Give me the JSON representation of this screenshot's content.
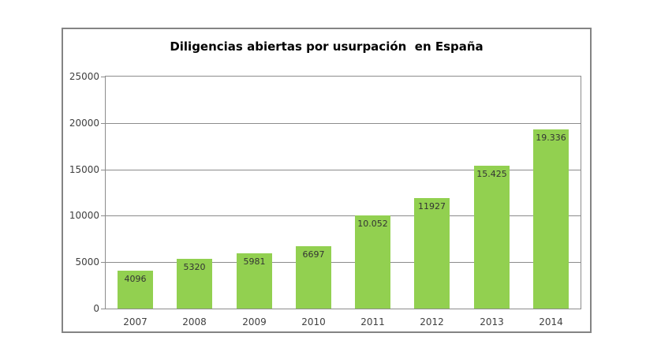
{
  "chart_data": {
    "type": "bar",
    "title": "Diligencias abiertas por usurpación  en España",
    "categories": [
      "2007",
      "2008",
      "2009",
      "2010",
      "2011",
      "2012",
      "2013",
      "2014"
    ],
    "values": [
      4096,
      5320,
      5981,
      6697,
      10052,
      11927,
      15425,
      19336
    ],
    "value_labels": [
      "4096",
      "5320",
      "5981",
      "6697",
      "10.052",
      "11927",
      "15.425",
      "19.336"
    ],
    "xlabel": "",
    "ylabel": "",
    "ylim": [
      0,
      25000
    ],
    "yticks": [
      0,
      5000,
      10000,
      15000,
      20000,
      25000
    ],
    "ytick_labels": [
      "0",
      "5000",
      "10000",
      "15000",
      "20000",
      "25000"
    ],
    "grid": true,
    "legend": "none",
    "data_labels_position": "inside-top",
    "colors": {
      "bar": "#92D050",
      "gridline": "#8C8C8C",
      "frame_border": "#848484",
      "title_text": "#000000",
      "axis_text": "#404040",
      "data_label_text": "#333333",
      "background": "#FFFFFF"
    }
  }
}
